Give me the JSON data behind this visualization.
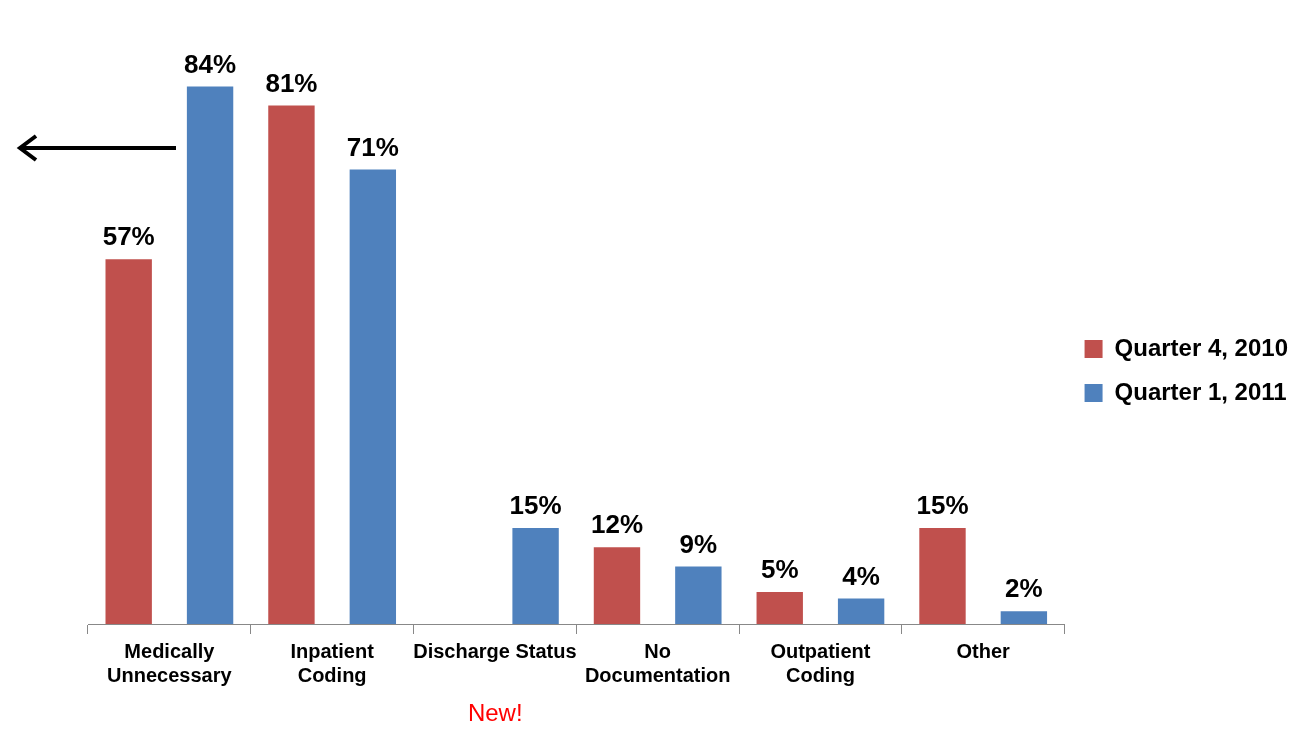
{
  "chart_data": {
    "type": "bar",
    "categories": [
      "Medically\nUnnecessary",
      "Inpatient\nCoding",
      "Discharge Status",
      "No\nDocumentation",
      "Outpatient\nCoding",
      "Other"
    ],
    "series": [
      {
        "name": "Quarter 4, 2010",
        "color": "#c0504d",
        "values": [
          57,
          81,
          null,
          12,
          5,
          15
        ],
        "value_labels": [
          "57%",
          "81%",
          null,
          "12%",
          "5%",
          "15%"
        ]
      },
      {
        "name": "Quarter 1, 2011",
        "color": "#4f81bd",
        "values": [
          84,
          71,
          15,
          9,
          4,
          2
        ],
        "value_labels": [
          "84%",
          "71%",
          "15%",
          "9%",
          "4%",
          "2%"
        ]
      }
    ],
    "annotations": [
      "New!"
    ],
    "legend": "right",
    "grid": false,
    "tick_labels": "x"
  }
}
